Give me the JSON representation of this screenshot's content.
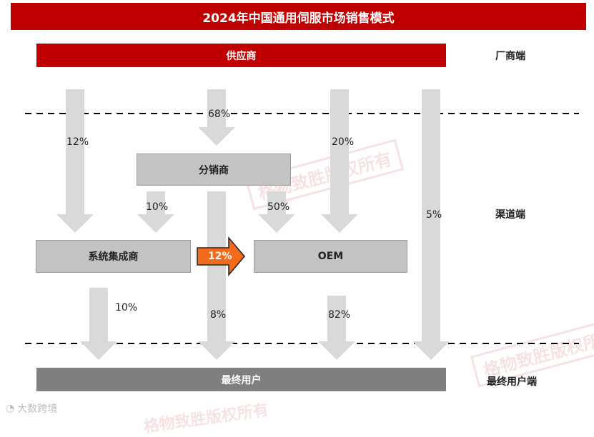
{
  "title": "2024年中国通用伺服市场销售模式",
  "nodes": {
    "supplier": "供应商",
    "distributor": "分销商",
    "integrator": "系统集成商",
    "oem": "OEM",
    "end_user": "最终用户"
  },
  "side_labels": {
    "manufacturer": "厂商端",
    "channel": "渠道端",
    "end_user": "最终用户端"
  },
  "flows": {
    "supplier_to_integrator": "12%",
    "supplier_to_distributor": "68%",
    "supplier_to_oem": "20%",
    "supplier_to_end_user": "5%",
    "distributor_to_integrator": "10%",
    "distributor_to_oem": "50%",
    "integrator_to_oem": "12%",
    "integrator_to_end_user": "10%",
    "distributor_to_end_user": "8%",
    "oem_to_end_user": "82%"
  },
  "watermark": "格物致胜版权所有",
  "footer_logo": "大数跨境",
  "colors": {
    "title_red": "#c00000",
    "node_gray": "#c3c3c3",
    "end_user_gray": "#7f7f7f",
    "arrow_gray": "#d9d9d9",
    "highlight_orange": "#f26b1d"
  }
}
